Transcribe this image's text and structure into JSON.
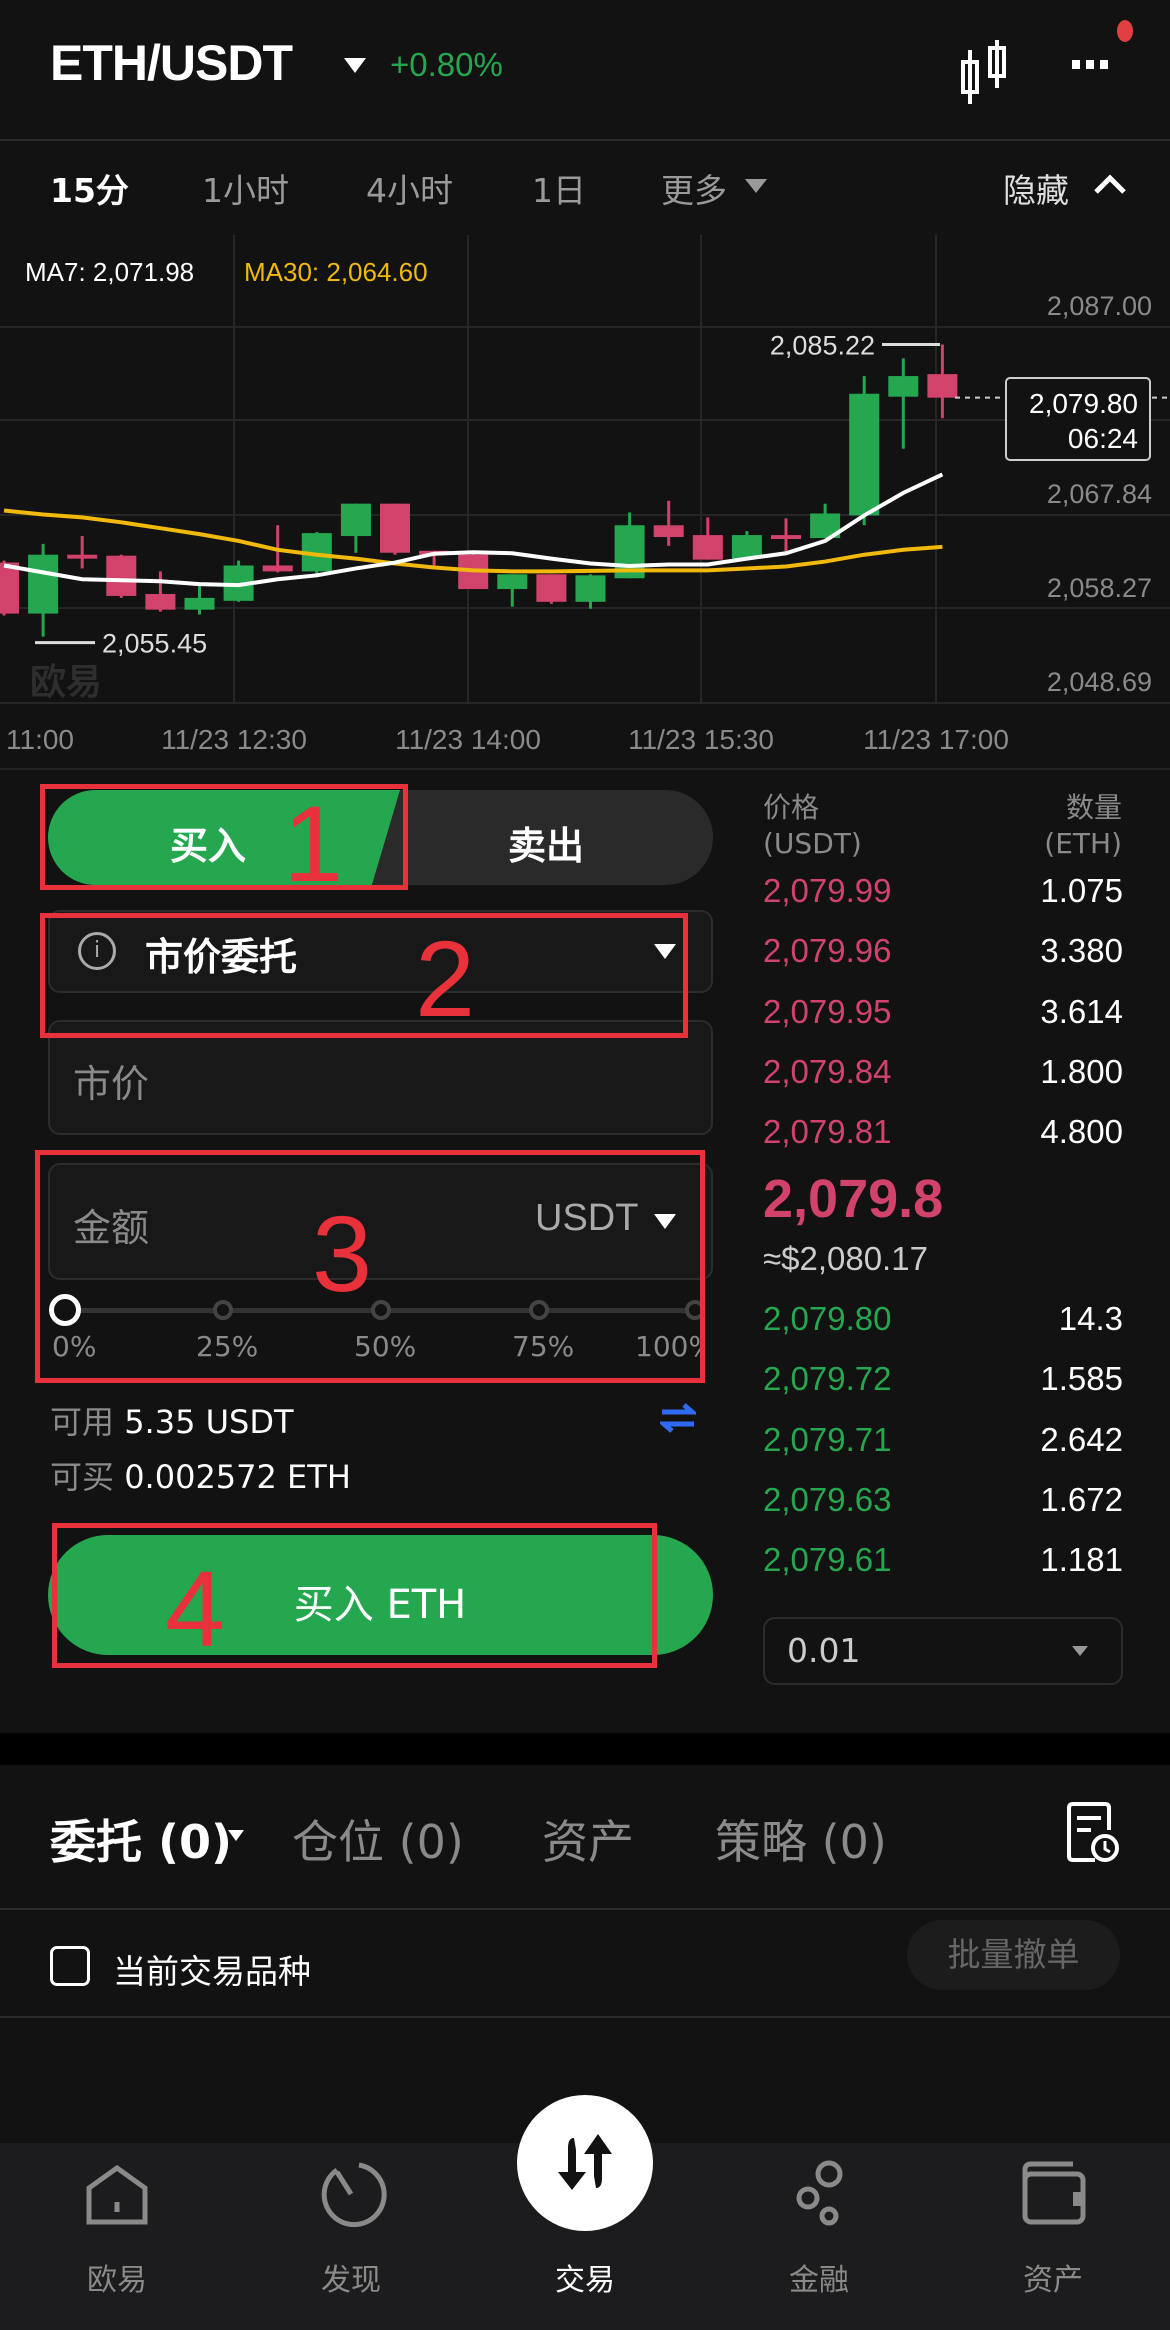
{
  "header": {
    "pair": "ETH/USDT",
    "change": "+0.80%",
    "change_color": "#25a750",
    "icons": [
      "candlestick-icon",
      "more-icon"
    ]
  },
  "timeframes": {
    "items": [
      "15分",
      "1小时",
      "4小时",
      "1日",
      "更多"
    ],
    "active": "15分",
    "hide_label": "隐藏"
  },
  "chart_data": {
    "type": "candlestick",
    "ma7_label": "MA7: 2,071.98",
    "ma30_label": "MA30: 2,064.60",
    "ma7_color": "#ffffff",
    "ma30_color": "#f0b90b",
    "up_color": "#25a750",
    "down_color": "#d2436c",
    "y_ticks": [
      "2,087.00",
      "2,067.84",
      "2,058.27",
      "2,048.69"
    ],
    "x_ticks": [
      "11:00",
      "11/23 12:30",
      "11/23 14:00",
      "11/23 15:30",
      "11/23 17:00"
    ],
    "high_label": "2,085.22",
    "low_label": "2,055.45",
    "last_price": "2,079.80",
    "countdown": "06:24",
    "watermark": "欧易",
    "ylim": [
      2048.69,
      2087.0
    ],
    "candles": [
      [
        2063.0,
        2063.2,
        2057.6,
        2057.8
      ],
      [
        2057.8,
        2064.9,
        2055.45,
        2063.8
      ],
      [
        2063.8,
        2065.7,
        2062.4,
        2063.4
      ],
      [
        2063.7,
        2063.8,
        2059.4,
        2059.6
      ],
      [
        2059.8,
        2062.1,
        2058.0,
        2058.2
      ],
      [
        2058.2,
        2060.6,
        2057.7,
        2059.4
      ],
      [
        2059.1,
        2063.2,
        2059.0,
        2062.7
      ],
      [
        2062.7,
        2066.8,
        2062.0,
        2062.1
      ],
      [
        2062.1,
        2066.1,
        2061.5,
        2066.0
      ],
      [
        2065.7,
        2069.0,
        2064.0,
        2069.0
      ],
      [
        2069.0,
        2069.0,
        2063.8,
        2064.0
      ],
      [
        2064.2,
        2064.2,
        2062.7,
        2063.8
      ],
      [
        2063.8,
        2064.0,
        2060.3,
        2060.3
      ],
      [
        2060.3,
        2061.8,
        2058.5,
        2061.8
      ],
      [
        2061.8,
        2061.8,
        2058.8,
        2059.0
      ],
      [
        2059.0,
        2061.8,
        2058.3,
        2061.7
      ],
      [
        2061.4,
        2068.1,
        2061.4,
        2066.8
      ],
      [
        2066.8,
        2069.3,
        2064.7,
        2065.6
      ],
      [
        2065.8,
        2067.6,
        2063.3,
        2063.3
      ],
      [
        2063.4,
        2066.2,
        2063.4,
        2065.8
      ],
      [
        2065.8,
        2067.5,
        2064.1,
        2065.4
      ],
      [
        2065.5,
        2069.0,
        2065.5,
        2068.0
      ],
      [
        2067.8,
        2082.0,
        2066.8,
        2080.2
      ],
      [
        2079.9,
        2083.8,
        2074.6,
        2082.0
      ],
      [
        2082.2,
        2085.22,
        2077.7,
        2079.8
      ]
    ],
    "ma7": [
      2062.7,
      2062.0,
      2061.3,
      2061.2,
      2061.1,
      2060.8,
      2060.7,
      2061.3,
      2061.7,
      2062.4,
      2063.0,
      2063.9,
      2064.05,
      2063.95,
      2063.4,
      2062.9,
      2062.65,
      2062.8,
      2062.8,
      2063.4,
      2063.95,
      2065.2,
      2067.8,
      2070.1,
      2071.98
    ],
    "ma30": [
      2068.3,
      2067.9,
      2067.6,
      2067.1,
      2066.5,
      2065.9,
      2065.2,
      2064.3,
      2063.8,
      2063.4,
      2062.9,
      2062.5,
      2062.2,
      2062.1,
      2062.1,
      2062.15,
      2062.2,
      2062.2,
      2062.2,
      2062.4,
      2062.6,
      2063.1,
      2063.8,
      2064.3,
      2064.6
    ]
  },
  "order_form": {
    "buy_label": "买入",
    "sell_label": "卖出",
    "order_type": "市价委托",
    "price_placeholder": "市价",
    "amount_placeholder": "金额",
    "amount_unit": "USDT",
    "slider_marks": [
      "0%",
      "25%",
      "50%",
      "75%",
      "100%"
    ],
    "slider_value": 0,
    "available_label": "可用",
    "available_value": "5.35 USDT",
    "max_buy_label": "可买",
    "max_buy_value": "0.002572 ETH",
    "submit_label": "买入 ETH"
  },
  "annotations": [
    "1",
    "2",
    "3",
    "4"
  ],
  "orderbook": {
    "price_header": "价格",
    "price_unit": "(USDT)",
    "qty_header": "数量",
    "qty_unit": "(ETH)",
    "asks": [
      [
        "2,079.99",
        "1.075"
      ],
      [
        "2,079.96",
        "3.380"
      ],
      [
        "2,079.95",
        "3.614"
      ],
      [
        "2,079.84",
        "1.800"
      ],
      [
        "2,079.81",
        "4.800"
      ]
    ],
    "mid_price": "2,079.8",
    "mid_usd": "≈$2,080.17",
    "bids": [
      [
        "2,079.80",
        "14.3"
      ],
      [
        "2,079.72",
        "1.585"
      ],
      [
        "2,079.71",
        "2.642"
      ],
      [
        "2,079.63",
        "1.672"
      ],
      [
        "2,079.61",
        "1.181"
      ]
    ],
    "depth": "0.01"
  },
  "orders": {
    "tabs": [
      "委托 (0)",
      "仓位 (0)",
      "资产",
      "策略 (0)"
    ],
    "filter_label": "当前交易品种",
    "cancel_all": "批量撤单"
  },
  "nav": {
    "items": [
      "欧易",
      "发现",
      "交易",
      "金融",
      "资产"
    ],
    "active": "交易"
  }
}
